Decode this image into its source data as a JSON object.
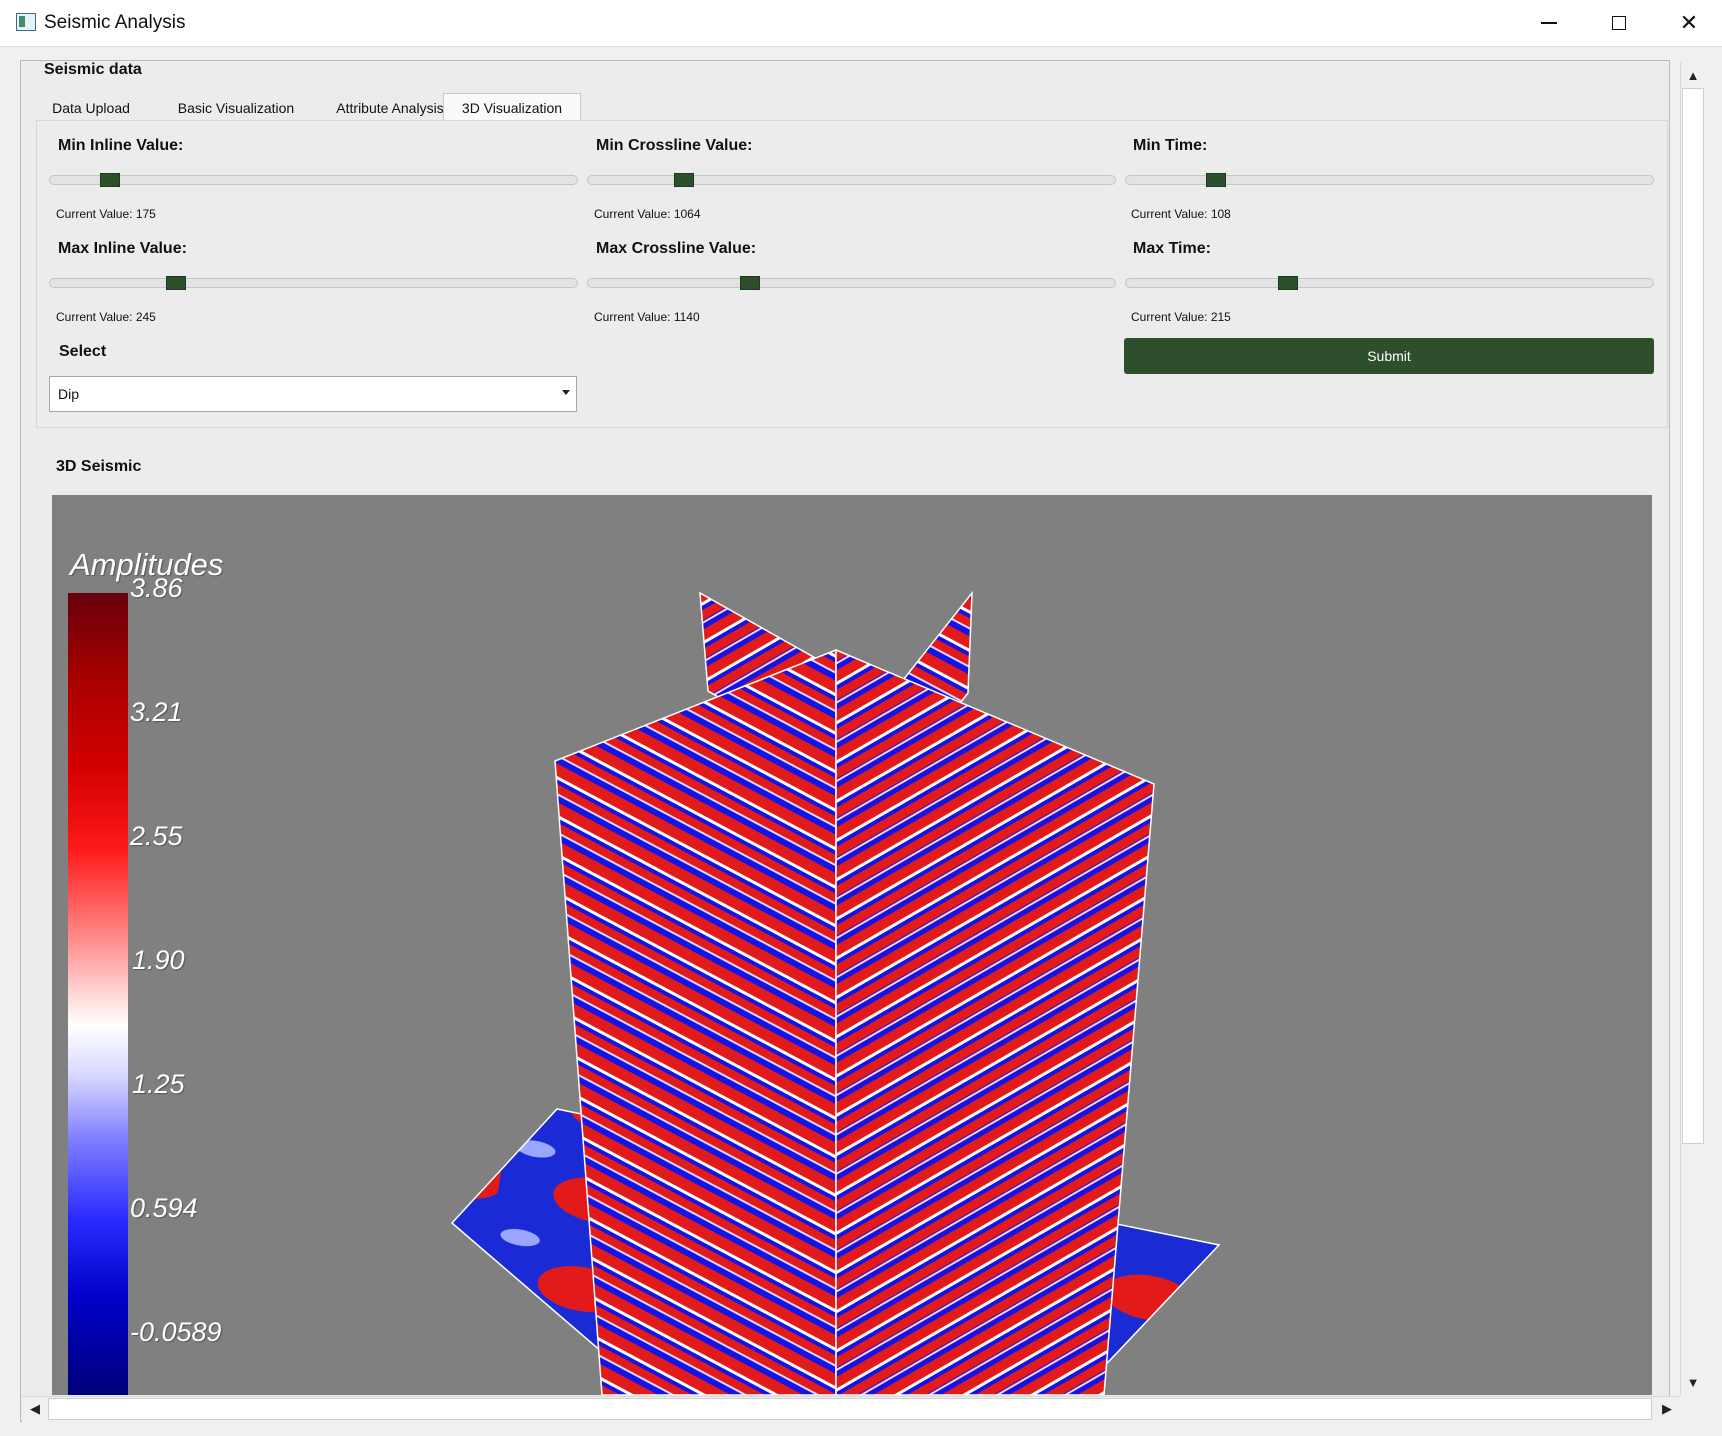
{
  "window": {
    "title": "Seismic Analysis"
  },
  "group_title": "Seismic data",
  "tabs": [
    {
      "label": "Data Upload"
    },
    {
      "label": "Basic Visualization"
    },
    {
      "label": "Attribute Analysis"
    },
    {
      "label": "3D Visualization",
      "active": true
    }
  ],
  "sliders": {
    "min_inline": {
      "label": "Min Inline Value:",
      "value_text": "Current Value: 175",
      "level": 0.1
    },
    "min_crossline": {
      "label": "Min Crossline Value:",
      "value_text": "Current Value: 1064",
      "level": 0.17
    },
    "min_time": {
      "label": "Min Time:",
      "value_text": "Current Value: 108",
      "level": 0.16
    },
    "max_inline": {
      "label": "Max Inline Value:",
      "value_text": "Current Value: 245",
      "level": 0.23
    },
    "max_crossline": {
      "label": "Max Crossline Value:",
      "value_text": "Current Value: 1140",
      "level": 0.3
    },
    "max_time": {
      "label": "Max Time:",
      "value_text": "Current Value: 215",
      "level": 0.3
    }
  },
  "select": {
    "label": "Select",
    "value": "Dip"
  },
  "submit_label": "Submit",
  "section_title": "3D Seismic",
  "viewer": {
    "colorbar_title": "Amplitudes",
    "ticks": [
      "3.86",
      "3.21",
      "2.55",
      "1.90",
      "1.25",
      "0.594",
      "-0.0589"
    ]
  },
  "colors": {
    "accent": "#2d4f2b",
    "viewport_bg": "#808080",
    "positive": "#e00000",
    "negative": "#0000e0"
  }
}
